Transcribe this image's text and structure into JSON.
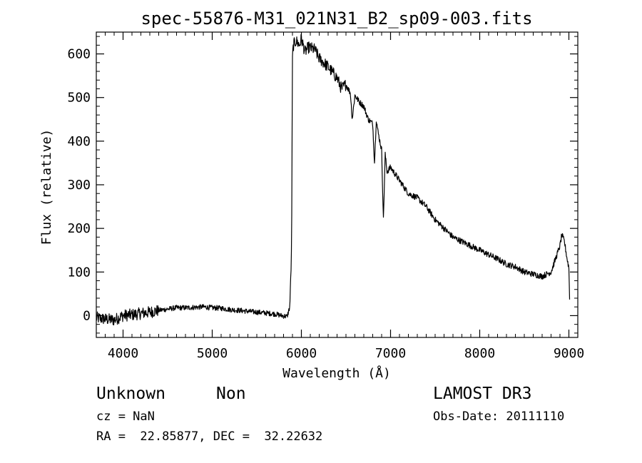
{
  "chart_data": {
    "type": "line",
    "title": "spec-55876-M31_021N31_B2_sp09-003.fits",
    "xlabel": "Wavelength (Å)",
    "ylabel": "Flux (relative)",
    "xlim": [
      3700,
      9100
    ],
    "ylim": [
      -50,
      650
    ],
    "x_ticks": [
      4000,
      5000,
      6000,
      7000,
      8000,
      9000
    ],
    "y_ticks": [
      0,
      100,
      200,
      300,
      400,
      500,
      600
    ],
    "x_tick_labels": [
      "4000",
      "5000",
      "6000",
      "7000",
      "8000",
      "9000"
    ],
    "y_tick_labels": [
      "0",
      "100",
      "200",
      "300",
      "400",
      "500",
      "600"
    ],
    "grid": false,
    "line_color": "#000000",
    "series": [
      {
        "name": "flux",
        "x": [
          3700,
          3800,
          3900,
          4000,
          4100,
          4200,
          4300,
          4400,
          4500,
          4600,
          4700,
          4800,
          4900,
          5000,
          5100,
          5200,
          5300,
          5400,
          5500,
          5600,
          5700,
          5780,
          5840,
          5870,
          5890,
          5900,
          5910,
          5940,
          5980,
          6000,
          6040,
          6080,
          6150,
          6200,
          6300,
          6400,
          6450,
          6500,
          6550,
          6570,
          6600,
          6650,
          6700,
          6750,
          6800,
          6820,
          6840,
          6860,
          6900,
          6920,
          6940,
          6960,
          7000,
          7100,
          7200,
          7300,
          7400,
          7500,
          7600,
          7700,
          7800,
          7900,
          8000,
          8100,
          8200,
          8300,
          8400,
          8500,
          8600,
          8700,
          8800,
          8850,
          8900,
          8920,
          8950,
          8980,
          9000,
          9010
        ],
        "y": [
          -5,
          -8,
          -10,
          0,
          2,
          5,
          8,
          12,
          15,
          18,
          18,
          19,
          20,
          18,
          17,
          14,
          12,
          10,
          8,
          6,
          4,
          0,
          -2,
          20,
          150,
          590,
          620,
          630,
          620,
          635,
          605,
          615,
          610,
          590,
          570,
          545,
          520,
          530,
          510,
          450,
          505,
          490,
          480,
          450,
          440,
          350,
          450,
          420,
          380,
          220,
          370,
          330,
          340,
          310,
          280,
          270,
          250,
          220,
          200,
          180,
          170,
          160,
          150,
          140,
          130,
          118,
          112,
          100,
          95,
          90,
          100,
          130,
          160,
          185,
          170,
          130,
          110,
          20
        ]
      }
    ],
    "annotations": {
      "object_class": "Unknown",
      "object_subclass": "Non",
      "cz": "cz = NaN",
      "coordinates": "RA =  22.85877, DEC =  32.22632",
      "survey": "LAMOST DR3",
      "obs_date": "Obs-Date: 20111110"
    }
  }
}
